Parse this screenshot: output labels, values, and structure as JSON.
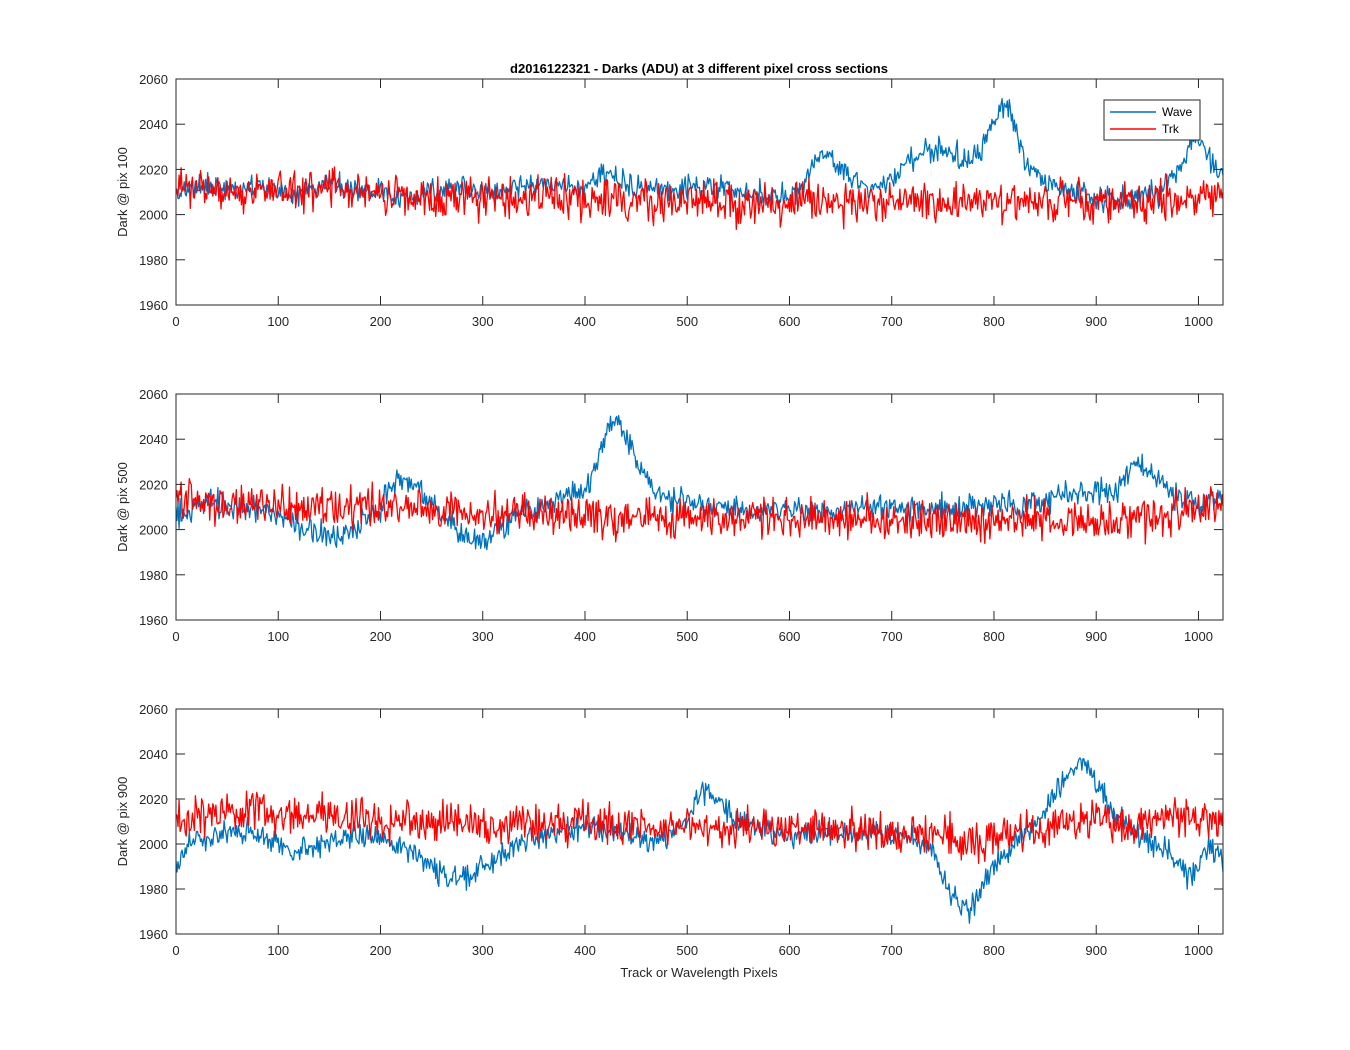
{
  "figure": {
    "title": "d2016122321 - Darks (ADU) at 3 different pixel cross sections",
    "xlabel": "Track or Wavelength Pixels"
  },
  "legend": {
    "entries": [
      "Wave",
      "Trk"
    ],
    "placement": "top-right (first subplot)"
  },
  "colors": {
    "wave": "#0072BD",
    "trk": "#FF0000",
    "axes": "#262626"
  },
  "chart_data": [
    {
      "type": "line",
      "title": "d2016122321 - Darks (ADU) at 3 different pixel cross sections",
      "xlabel": "",
      "ylabel": "Dark @ pix 100",
      "xlim": [
        0,
        1024
      ],
      "ylim": [
        1960,
        2060
      ],
      "xticks": [
        0,
        100,
        200,
        300,
        400,
        500,
        600,
        700,
        800,
        900,
        1000
      ],
      "yticks": [
        1960,
        1980,
        2000,
        2020,
        2040,
        2060
      ],
      "grid": false,
      "legend": "top-right",
      "series": [
        {
          "name": "Wave",
          "color": "#0072BD",
          "x": [
            0,
            20,
            40,
            60,
            80,
            100,
            120,
            140,
            160,
            180,
            200,
            220,
            240,
            260,
            280,
            300,
            320,
            340,
            360,
            380,
            400,
            410,
            420,
            430,
            440,
            460,
            480,
            500,
            520,
            540,
            560,
            580,
            600,
            615,
            625,
            635,
            645,
            660,
            680,
            700,
            715,
            730,
            745,
            760,
            775,
            790,
            800,
            808,
            815,
            822,
            830,
            845,
            860,
            880,
            900,
            920,
            940,
            960,
            980,
            990,
            1000,
            1010,
            1024
          ],
          "y": [
            2008,
            2012,
            2014,
            2010,
            2013,
            2011,
            2009,
            2013,
            2012,
            2011,
            2010,
            2008,
            2009,
            2011,
            2012,
            2010,
            2011,
            2013,
            2014,
            2012,
            2011,
            2015,
            2018,
            2016,
            2014,
            2012,
            2010,
            2011,
            2013,
            2012,
            2010,
            2009,
            2008,
            2014,
            2024,
            2028,
            2022,
            2016,
            2012,
            2014,
            2022,
            2028,
            2030,
            2028,
            2024,
            2030,
            2042,
            2048,
            2046,
            2038,
            2024,
            2016,
            2012,
            2010,
            2008,
            2006,
            2008,
            2010,
            2018,
            2030,
            2034,
            2026,
            2016
          ]
        },
        {
          "name": "Trk",
          "color": "#FF0000",
          "x": [
            0,
            20,
            40,
            60,
            80,
            100,
            120,
            140,
            160,
            180,
            200,
            220,
            240,
            260,
            280,
            300,
            320,
            340,
            360,
            380,
            400,
            420,
            440,
            460,
            480,
            500,
            520,
            540,
            560,
            580,
            600,
            620,
            640,
            660,
            680,
            700,
            720,
            740,
            760,
            780,
            800,
            820,
            840,
            860,
            880,
            900,
            920,
            940,
            960,
            980,
            1000,
            1024
          ],
          "y": [
            2012,
            2012,
            2011,
            2010,
            2011,
            2012,
            2010,
            2011,
            2012,
            2010,
            2009,
            2010,
            2008,
            2009,
            2007,
            2008,
            2007,
            2006,
            2008,
            2007,
            2006,
            2007,
            2006,
            2007,
            2006,
            2007,
            2006,
            2005,
            2006,
            2005,
            2006,
            2005,
            2006,
            2005,
            2006,
            2005,
            2006,
            2005,
            2006,
            2005,
            2006,
            2005,
            2006,
            2005,
            2006,
            2005,
            2006,
            2005,
            2006,
            2007,
            2008,
            2010
          ]
        }
      ]
    },
    {
      "type": "line",
      "title": "",
      "xlabel": "",
      "ylabel": "Dark @ pix 500",
      "xlim": [
        0,
        1024
      ],
      "ylim": [
        1960,
        2060
      ],
      "xticks": [
        0,
        100,
        200,
        300,
        400,
        500,
        600,
        700,
        800,
        900,
        1000
      ],
      "yticks": [
        1960,
        1980,
        2000,
        2020,
        2040,
        2060
      ],
      "grid": false,
      "series": [
        {
          "name": "Wave",
          "color": "#0072BD",
          "x": [
            0,
            20,
            40,
            60,
            80,
            100,
            120,
            140,
            160,
            180,
            200,
            215,
            225,
            240,
            260,
            280,
            300,
            320,
            340,
            360,
            380,
            400,
            412,
            422,
            432,
            442,
            455,
            470,
            490,
            520,
            560,
            600,
            640,
            680,
            720,
            760,
            800,
            840,
            880,
            900,
            920,
            935,
            950,
            970,
            1000,
            1024
          ],
          "y": [
            2006,
            2010,
            2012,
            2010,
            2009,
            2006,
            2002,
            1998,
            1996,
            2002,
            2010,
            2022,
            2024,
            2016,
            2008,
            1998,
            1994,
            2002,
            2008,
            2010,
            2014,
            2018,
            2030,
            2044,
            2048,
            2040,
            2026,
            2016,
            2012,
            2010,
            2008,
            2009,
            2008,
            2010,
            2009,
            2010,
            2011,
            2012,
            2016,
            2018,
            2016,
            2028,
            2026,
            2016,
            2012,
            2014
          ]
        },
        {
          "name": "Trk",
          "color": "#FF0000",
          "x": [
            0,
            20,
            40,
            60,
            80,
            100,
            120,
            140,
            160,
            180,
            200,
            220,
            240,
            260,
            280,
            300,
            320,
            340,
            360,
            380,
            400,
            420,
            440,
            460,
            480,
            500,
            520,
            540,
            560,
            580,
            600,
            620,
            640,
            660,
            680,
            700,
            720,
            740,
            760,
            780,
            800,
            820,
            840,
            860,
            880,
            900,
            920,
            940,
            960,
            980,
            1000,
            1024
          ],
          "y": [
            2014,
            2011,
            2012,
            2010,
            2011,
            2010,
            2009,
            2010,
            2011,
            2009,
            2010,
            2009,
            2008,
            2009,
            2008,
            2007,
            2008,
            2007,
            2006,
            2007,
            2005,
            2006,
            2005,
            2006,
            2005,
            2006,
            2005,
            2006,
            2005,
            2006,
            2005,
            2004,
            2005,
            2004,
            2005,
            2003,
            2004,
            2003,
            2004,
            2003,
            2004,
            2003,
            2004,
            2003,
            2004,
            2003,
            2004,
            2005,
            2006,
            2008,
            2010,
            2012
          ]
        }
      ]
    },
    {
      "type": "line",
      "title": "",
      "xlabel": "Track or Wavelength Pixels",
      "ylabel": "Dark @ pix 900",
      "xlim": [
        0,
        1024
      ],
      "ylim": [
        1960,
        2060
      ],
      "xticks": [
        0,
        100,
        200,
        300,
        400,
        500,
        600,
        700,
        800,
        900,
        1000
      ],
      "yticks": [
        1960,
        1980,
        2000,
        2020,
        2040,
        2060
      ],
      "grid": false,
      "series": [
        {
          "name": "Wave",
          "color": "#0072BD",
          "x": [
            0,
            10,
            20,
            40,
            60,
            80,
            100,
            120,
            140,
            160,
            180,
            200,
            220,
            240,
            255,
            270,
            285,
            300,
            320,
            340,
            360,
            380,
            400,
            420,
            440,
            460,
            480,
            500,
            510,
            520,
            540,
            560,
            580,
            600,
            620,
            640,
            660,
            680,
            700,
            720,
            740,
            750,
            765,
            775,
            785,
            800,
            820,
            840,
            855,
            870,
            880,
            890,
            900,
            920,
            940,
            960,
            975,
            990,
            1000,
            1010,
            1024
          ],
          "y": [
            1990,
            1998,
            2002,
            2004,
            2006,
            2004,
            2000,
            1998,
            2000,
            2002,
            2004,
            2002,
            1998,
            1994,
            1988,
            1984,
            1986,
            1990,
            1996,
            2002,
            2004,
            2006,
            2008,
            2006,
            2004,
            2002,
            2004,
            2010,
            2020,
            2024,
            2014,
            2008,
            2006,
            2004,
            2004,
            2005,
            2004,
            2006,
            2004,
            2002,
            1996,
            1984,
            1974,
            1970,
            1978,
            1990,
            2000,
            2008,
            2020,
            2030,
            2034,
            2036,
            2028,
            2012,
            2004,
            2000,
            1994,
            1986,
            1988,
            2000,
            1992
          ]
        },
        {
          "name": "Trk",
          "color": "#FF0000",
          "x": [
            0,
            20,
            40,
            60,
            80,
            100,
            120,
            140,
            160,
            180,
            200,
            220,
            240,
            260,
            280,
            300,
            320,
            340,
            360,
            380,
            400,
            420,
            440,
            460,
            480,
            500,
            520,
            540,
            560,
            580,
            600,
            620,
            640,
            660,
            680,
            700,
            720,
            740,
            760,
            780,
            800,
            820,
            840,
            860,
            880,
            900,
            920,
            940,
            960,
            980,
            1000,
            1024
          ],
          "y": [
            2010,
            2012,
            2013,
            2014,
            2015,
            2013,
            2012,
            2013,
            2012,
            2011,
            2010,
            2011,
            2010,
            2009,
            2010,
            2009,
            2008,
            2009,
            2008,
            2009,
            2010,
            2009,
            2008,
            2007,
            2008,
            2007,
            2008,
            2007,
            2008,
            2007,
            2008,
            2007,
            2006,
            2007,
            2006,
            2005,
            2004,
            2003,
            2002,
            2001,
            2003,
            2005,
            2006,
            2008,
            2010,
            2011,
            2010,
            2011,
            2012,
            2013,
            2012,
            2011
          ]
        }
      ]
    }
  ]
}
